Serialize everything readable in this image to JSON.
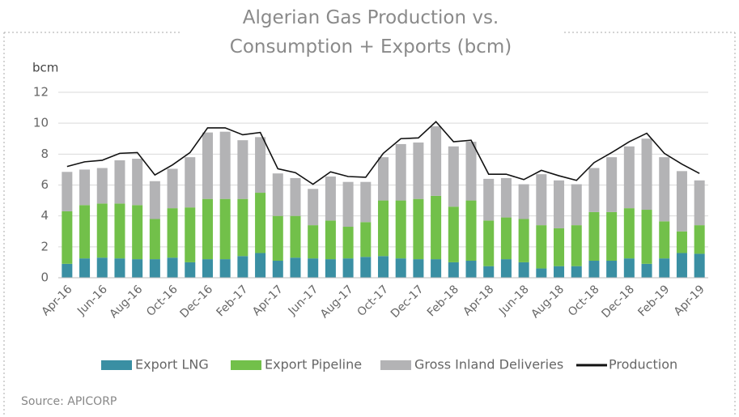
{
  "chart_data": {
    "type": "stacked_bar_line",
    "title": "Algerian Gas Production vs. Consumption + Exports (bcm)",
    "y_label": "bcm",
    "source": "Source: APICORP",
    "categories": [
      "Apr-16",
      null,
      "Jun-16",
      null,
      "Aug-16",
      null,
      "Oct-16",
      null,
      "Dec-16",
      null,
      "Feb-17",
      null,
      "Apr-17",
      null,
      "Jun-17",
      null,
      "Aug-17",
      null,
      "Oct-17",
      null,
      "Dec-17",
      null,
      "Feb-18",
      null,
      "Apr-18",
      null,
      "Jun-18",
      null,
      "Aug-18",
      null,
      "Oct-18",
      null,
      "Dec-18",
      null,
      "Feb-19",
      null,
      "Apr-19"
    ],
    "series": [
      {
        "name": "Export LNG",
        "color": "#3a8fa3",
        "kind": "bar",
        "values": [
          0.9,
          1.25,
          1.3,
          1.25,
          1.2,
          1.2,
          1.3,
          1.0,
          1.2,
          1.2,
          1.4,
          1.6,
          1.1,
          1.3,
          1.25,
          1.2,
          1.25,
          1.35,
          1.4,
          1.25,
          1.2,
          1.2,
          1.0,
          1.1,
          0.75,
          1.2,
          1.0,
          0.6,
          0.75,
          0.75,
          1.1,
          1.1,
          1.25,
          0.9,
          1.25,
          1.6,
          1.55
        ]
      },
      {
        "name": "Export Pipeline",
        "color": "#72c04a",
        "kind": "bar",
        "values": [
          3.4,
          3.45,
          3.5,
          3.55,
          3.5,
          2.6,
          3.2,
          3.55,
          3.9,
          3.9,
          3.7,
          3.9,
          2.9,
          2.7,
          2.15,
          2.5,
          2.05,
          2.25,
          3.6,
          3.75,
          3.9,
          4.1,
          3.6,
          3.9,
          2.95,
          2.7,
          2.8,
          2.8,
          2.45,
          2.65,
          3.15,
          3.15,
          3.25,
          3.5,
          2.4,
          1.4,
          1.85
        ]
      },
      {
        "name": "Gross Inland Deliveries",
        "color": "#b3b3b5",
        "kind": "bar",
        "values": [
          2.55,
          2.3,
          2.3,
          2.8,
          3.0,
          2.45,
          2.55,
          3.25,
          4.3,
          4.35,
          3.8,
          3.6,
          2.75,
          2.45,
          2.35,
          2.85,
          2.9,
          2.6,
          2.8,
          3.65,
          3.65,
          4.5,
          3.9,
          3.8,
          2.7,
          2.55,
          2.25,
          3.3,
          3.1,
          2.65,
          2.85,
          3.55,
          4.0,
          4.6,
          4.15,
          3.9,
          2.9
        ]
      },
      {
        "name": "Production",
        "color": "#111111",
        "kind": "line",
        "values": [
          7.2,
          7.5,
          7.6,
          8.05,
          8.1,
          6.65,
          7.3,
          8.1,
          9.7,
          9.7,
          9.25,
          9.4,
          7.05,
          6.8,
          6.05,
          6.85,
          6.55,
          6.5,
          8.05,
          9.0,
          9.05,
          10.1,
          8.8,
          8.9,
          6.7,
          6.7,
          6.35,
          6.95,
          6.6,
          6.3,
          7.45,
          8.1,
          8.8,
          9.35,
          8.05,
          7.35,
          6.75
        ]
      }
    ],
    "ylim": [
      0,
      12
    ],
    "yticks": [
      0,
      2,
      4,
      6,
      8,
      10,
      12
    ],
    "grid": true,
    "legend": "bottom"
  }
}
